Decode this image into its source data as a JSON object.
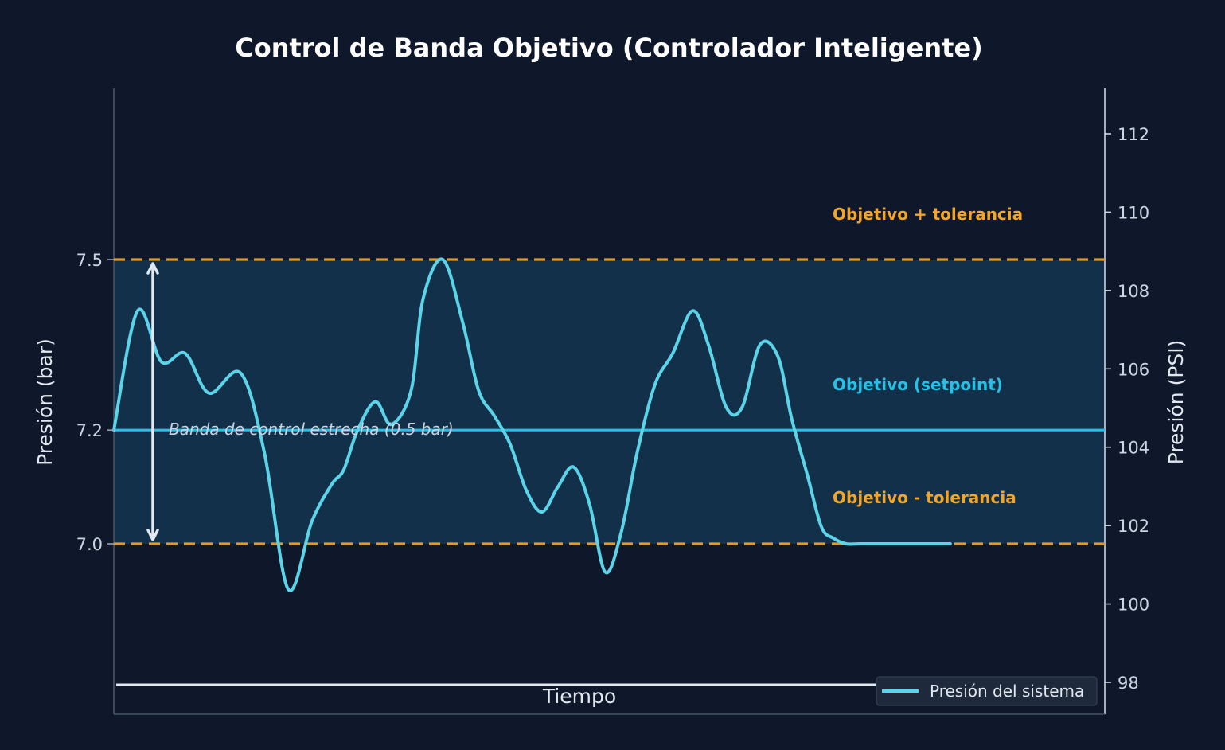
{
  "chart_data": {
    "type": "line",
    "title": "Control de Banda Objetivo (Controlador Inteligente)",
    "xlabel": "Tiempo",
    "ylabel": "Presión (bar)",
    "ylabel_right": "Presión (PSI)",
    "ylim": [
      6.26,
      7.79
    ],
    "xlim": [
      0,
      100
    ],
    "y_ticks": [
      7.0,
      7.2,
      7.5
    ],
    "y_tick_labels": [
      "7.0",
      "7.2",
      "7.5"
    ],
    "y2_ticks": [
      98,
      100,
      102,
      104,
      106,
      108,
      110,
      112
    ],
    "grid": false,
    "legend_position": "bottom-right",
    "series": [
      {
        "name": "Presión del sistema",
        "color": "#5bd3e8",
        "x": [
          0,
          2.4,
          4.8,
          7.2,
          9.6,
          12.8,
          15.2,
          17.6,
          20.0,
          22.0,
          23.2,
          24.6,
          26.4,
          28.0,
          30.0,
          31.2,
          33.2,
          35.2,
          36.8,
          38.4,
          40.0,
          41.6,
          43.2,
          44.8,
          46.4,
          48.0,
          49.6,
          51.2,
          52.8,
          54.6,
          56.4,
          58.4,
          60.0,
          61.8,
          63.4,
          65.2,
          67.0,
          68.4,
          70.0,
          71.4,
          72.6,
          73.9,
          75.3,
          76.6,
          78.0,
          79.3,
          80.5,
          81.6,
          82.5,
          84.4
        ],
        "values": [
          7.2,
          7.41,
          7.32,
          7.335,
          7.265,
          7.3,
          7.16,
          6.92,
          7.04,
          7.105,
          7.13,
          7.2,
          7.25,
          7.21,
          7.27,
          7.43,
          7.5,
          7.39,
          7.27,
          7.225,
          7.175,
          7.095,
          7.056,
          7.1,
          7.135,
          7.07,
          6.95,
          7.02,
          7.16,
          7.28,
          7.335,
          7.41,
          7.35,
          7.24,
          7.24,
          7.35,
          7.33,
          7.22,
          7.12,
          7.03,
          7.01,
          7.0,
          7.0,
          7.0,
          7.0,
          7.0,
          7.0,
          7.0,
          7.0,
          7.0
        ]
      }
    ],
    "bands": {
      "upper": 7.5,
      "setpoint": 7.2,
      "lower": 7.0,
      "band_color": "#12304a",
      "limit_color": "#e39a1f",
      "setpoint_color": "#22c3e6"
    },
    "annotations": {
      "upper_label": "Objetivo + tolerancia",
      "setpoint_label": "Objetivo (setpoint)",
      "lower_label": "Objetivo - tolerancia",
      "band_label": "Banda de control estrecha (0.5 bar)"
    }
  }
}
